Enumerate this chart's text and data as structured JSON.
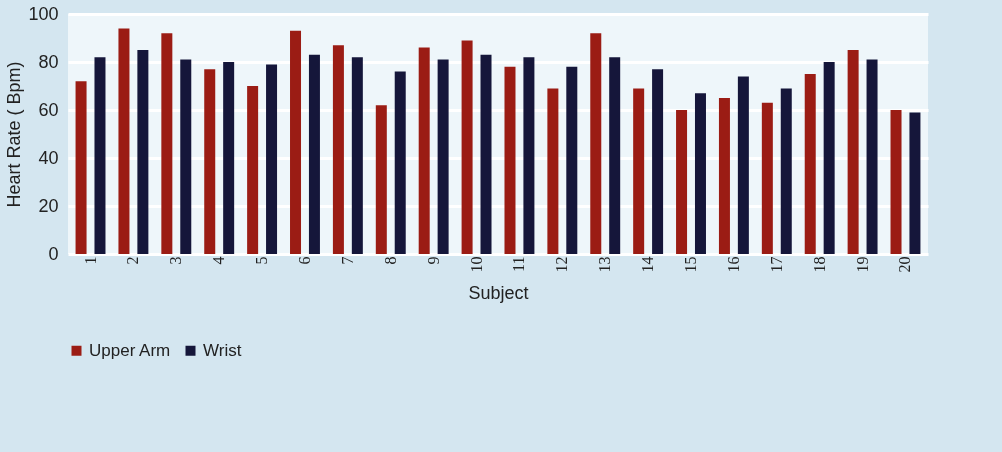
{
  "chart_data": {
    "type": "bar",
    "xlabel": "Subject",
    "ylabel": "Heart Rate ( Bpm)",
    "categories": [
      "1",
      "2",
      "3",
      "4",
      "5",
      "6",
      "7",
      "8",
      "9",
      "10",
      "11",
      "12",
      "13",
      "14",
      "15",
      "16",
      "17",
      "18",
      "19",
      "20"
    ],
    "series": [
      {
        "name": "Upper Arm",
        "color": "#9b1c14",
        "values": [
          72,
          94,
          92,
          77,
          70,
          93,
          87,
          62,
          86,
          89,
          78,
          69,
          92,
          69,
          60,
          65,
          63,
          75,
          85,
          60
        ]
      },
      {
        "name": "Wrist",
        "color": "#15163a",
        "values": [
          82,
          85,
          81,
          80,
          79,
          83,
          82,
          76,
          81,
          83,
          82,
          78,
          82,
          77,
          67,
          74,
          69,
          80,
          81,
          59
        ]
      }
    ],
    "ylim": [
      0,
      100
    ],
    "yticks": [
      0,
      20,
      40,
      60,
      80,
      100
    ],
    "grid": "y",
    "legend": "bottom"
  }
}
